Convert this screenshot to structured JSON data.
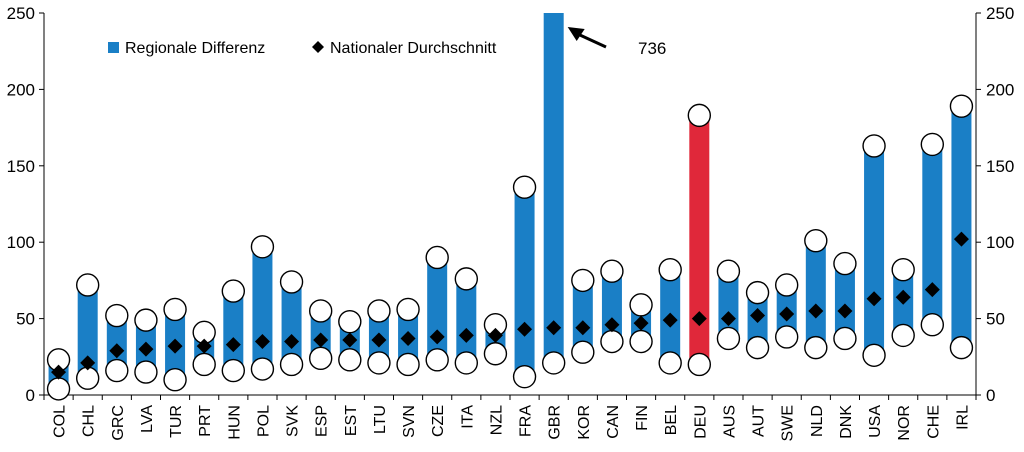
{
  "chart_data": {
    "type": "bar",
    "title": "",
    "xlabel": "",
    "ylabel": "",
    "ylim": [
      0,
      250
    ],
    "yticks": [
      0,
      50,
      100,
      150,
      200,
      250
    ],
    "secondary_axis": true,
    "grid": false,
    "legend": {
      "placement": "top-left",
      "entries": [
        {
          "label": "Regionale Differenz",
          "marker": "bar"
        },
        {
          "label": "Nationaler Durchschnitt",
          "marker": "diamond"
        }
      ]
    },
    "categories": [
      "COL",
      "CHL",
      "GRC",
      "LVA",
      "TUR",
      "PRT",
      "HUN",
      "POL",
      "SVK",
      "ESP",
      "EST",
      "LTU",
      "SVN",
      "CZE",
      "ITA",
      "NZL",
      "FRA",
      "GBR",
      "KOR",
      "CAN",
      "FIN",
      "BEL",
      "DEU",
      "AUS",
      "AUT",
      "SWE",
      "NLD",
      "DNK",
      "USA",
      "NOR",
      "CHE",
      "IRL"
    ],
    "series": [
      {
        "name": "Regionale Differenz",
        "type": "range-bar",
        "low": [
          4,
          11,
          16,
          15,
          10,
          20,
          16,
          17,
          20,
          24,
          23,
          21,
          20,
          23,
          21,
          27,
          12,
          21,
          28,
          35,
          35,
          21,
          20,
          37,
          31,
          38,
          31,
          37,
          26,
          39,
          46,
          31
        ],
        "high": [
          23,
          72,
          52,
          49,
          56,
          41,
          68,
          97,
          74,
          55,
          48,
          55,
          56,
          90,
          76,
          46,
          136,
          736,
          75,
          81,
          59,
          82,
          183,
          81,
          67,
          72,
          101,
          86,
          163,
          82,
          164,
          189
        ]
      },
      {
        "name": "Nationaler Durchschnitt",
        "type": "marker",
        "values": [
          15,
          21,
          29,
          30,
          32,
          32,
          33,
          35,
          35,
          36,
          36,
          36,
          37,
          38,
          39,
          39,
          43,
          44,
          44,
          46,
          47,
          49,
          50,
          50,
          52,
          53,
          55,
          55,
          63,
          64,
          69,
          102
        ]
      }
    ],
    "highlight": {
      "category": "DEU",
      "color": "#e0283a"
    },
    "colors": {
      "bar": "#1a7fc6",
      "highlight": "#e0283a",
      "marker": "#000000"
    },
    "annotations": [
      {
        "text": "736",
        "points_to": "GBR"
      }
    ]
  }
}
